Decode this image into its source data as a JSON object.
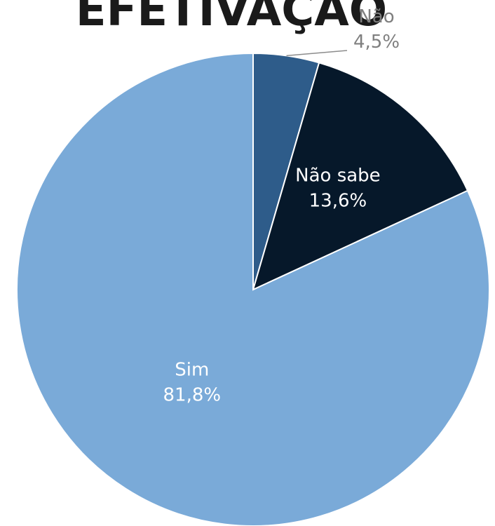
{
  "chart_data": {
    "type": "pie",
    "title": "EFETIVAÇÃO",
    "categories": [
      "Não",
      "Não sabe",
      "Sim"
    ],
    "values": [
      4.5,
      13.6,
      81.8
    ],
    "value_labels": [
      "4,5%",
      "13,6%",
      "81,8%"
    ],
    "colors": [
      "#2e5c8a",
      "#06182a",
      "#7aaad8"
    ],
    "label_colors": [
      "#7f7f7f",
      "#ffffff",
      "#ffffff"
    ],
    "start_angle_deg": 0,
    "direction": "clockwise",
    "legend": "none"
  }
}
